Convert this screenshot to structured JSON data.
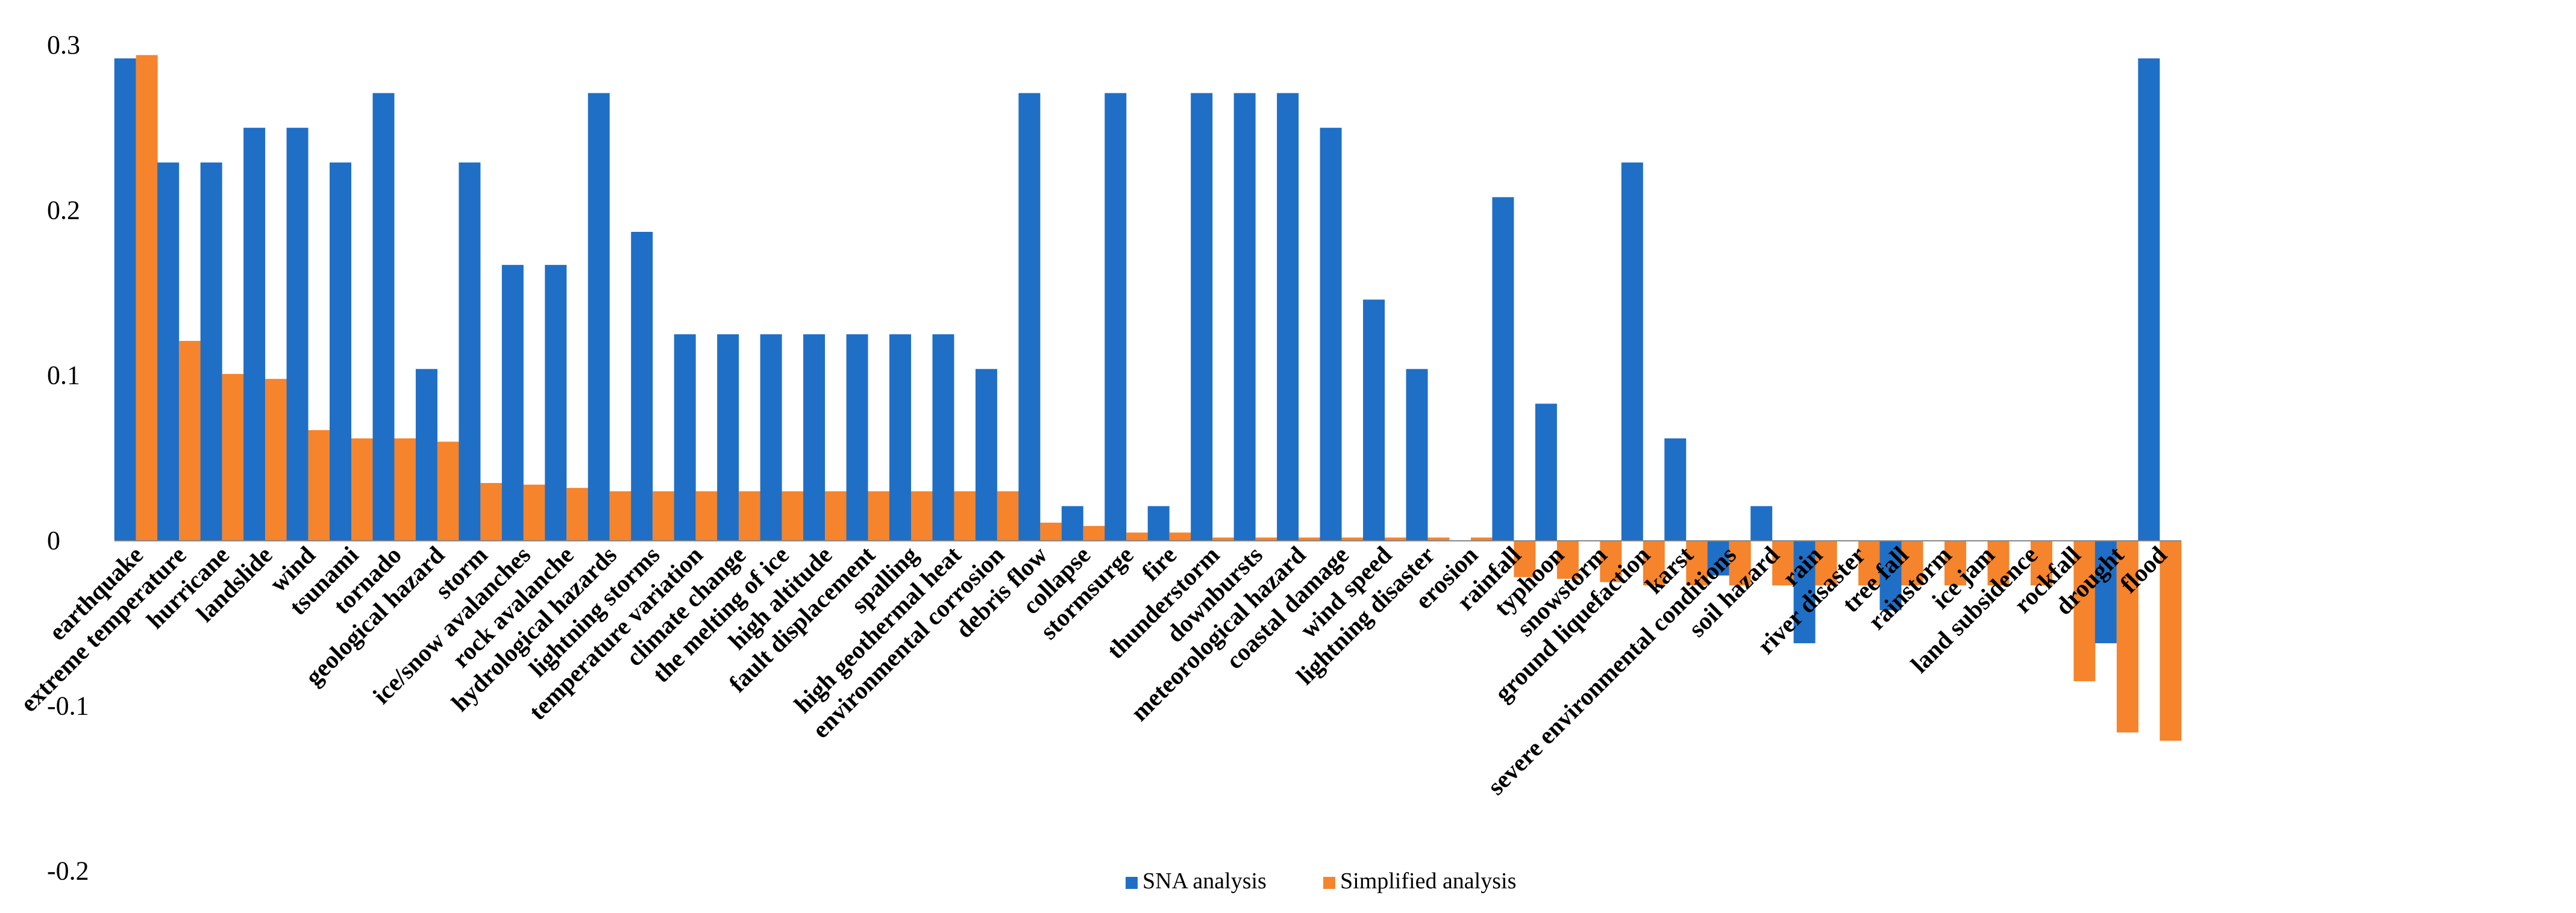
{
  "chart_data": {
    "type": "bar",
    "title": "",
    "xlabel": "",
    "ylabel": "",
    "ylim": [
      -0.2,
      0.3
    ],
    "yticks": [
      -0.2,
      -0.1,
      0,
      0.1,
      0.2,
      0.3
    ],
    "ytick_labels": [
      "-0.2",
      "-0.1",
      "0",
      "0.1",
      "0.2",
      "0.3"
    ],
    "grid": false,
    "legend_position": "bottom-center",
    "categories": [
      "earthquake",
      "extreme temperature",
      "hurricane",
      "landslide",
      "wind",
      "tsunami",
      "tornado",
      "geological hazard",
      "storm",
      "ice/snow avalanches",
      "rock avalanche",
      "hydrological hazards",
      "lightning storms",
      "temperature variation",
      "climate change",
      "the melting of ice",
      "high altitude",
      "fault displacement",
      "spalling",
      "high geothermal heat",
      "environmental corrosion",
      "debris flow",
      "collapse",
      "stormsurge",
      "fire",
      "thunderstorm",
      "downbursts",
      "meteorological hazard",
      "coastal damage",
      "wind speed",
      "lightning disaster",
      "erosion",
      "rainfall",
      "typhoon",
      "snowstorm",
      "ground liquefaction",
      "karst",
      "severe environmental conditions",
      "soil hazard",
      "rain",
      "river disaster",
      "tree fall",
      "rainstorm",
      "ice jam",
      "land subsidence",
      "rockfall",
      "drought",
      "flood"
    ],
    "series": [
      {
        "name": "SNA analysis",
        "color": "#1F6FC6",
        "values": [
          0.292,
          0.229,
          0.229,
          0.25,
          0.25,
          0.229,
          0.271,
          0.104,
          0.229,
          0.167,
          0.167,
          0.271,
          0.187,
          0.125,
          0.125,
          0.125,
          0.125,
          0.125,
          0.125,
          0.125,
          0.104,
          0.271,
          0.021,
          0.271,
          0.021,
          0.271,
          0.271,
          0.271,
          0.25,
          0.146,
          0.104,
          0,
          0.208,
          0.083,
          0,
          0.229,
          0.062,
          -0.021,
          0.021,
          -0.062,
          0,
          -0.042,
          0,
          0,
          0,
          0,
          -0.062,
          0.292
        ]
      },
      {
        "name": "Simplified analysis",
        "color": "#F5842C",
        "values": [
          0.294,
          0.121,
          0.101,
          0.098,
          0.067,
          0.062,
          0.062,
          0.06,
          0.035,
          0.034,
          0.032,
          0.03,
          0.03,
          0.03,
          0.03,
          0.03,
          0.03,
          0.03,
          0.03,
          0.03,
          0.03,
          0.011,
          0.009,
          0.005,
          0.005,
          0.002,
          0.002,
          0.002,
          0.002,
          0.002,
          0.002,
          0.002,
          -0.022,
          -0.023,
          -0.025,
          -0.027,
          -0.027,
          -0.027,
          -0.027,
          -0.027,
          -0.027,
          -0.027,
          -0.027,
          -0.027,
          -0.027,
          -0.085,
          -0.116,
          -0.121
        ]
      }
    ]
  }
}
